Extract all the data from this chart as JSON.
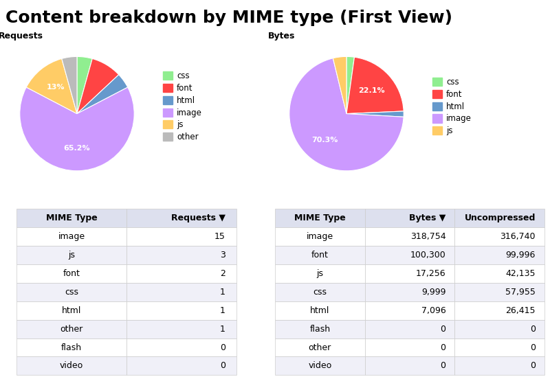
{
  "title": "Content breakdown by MIME type (First View)",
  "title_fontsize": 18,
  "title_fontweight": "bold",
  "req_label": "Requests",
  "req_pie_labels": [
    "css",
    "font",
    "html",
    "image",
    "js",
    "other"
  ],
  "req_pie_sizes": [
    4.3,
    8.7,
    4.3,
    65.2,
    13.0,
    4.3
  ],
  "req_pie_colors": [
    "#90ee90",
    "#ff4444",
    "#6699cc",
    "#cc99ff",
    "#ffcc66",
    "#bbbbbb"
  ],
  "req_pct_show": {
    "image": "65.2%",
    "js": "13%"
  },
  "bytes_label": "Bytes",
  "bytes_pie_labels": [
    "css",
    "font",
    "html",
    "image",
    "js"
  ],
  "bytes_pie_sizes": [
    2.2,
    22.1,
    1.6,
    70.3,
    3.8
  ],
  "bytes_pie_colors": [
    "#90ee90",
    "#ff4444",
    "#6699cc",
    "#cc99ff",
    "#ffcc66"
  ],
  "bytes_pct_show": {
    "image": "70.3%",
    "font": "22.1%"
  },
  "req_table_headers": [
    "MIME Type",
    "Requests ▼"
  ],
  "req_table_rows": [
    [
      "image",
      "15"
    ],
    [
      "js",
      "3"
    ],
    [
      "font",
      "2"
    ],
    [
      "css",
      "1"
    ],
    [
      "html",
      "1"
    ],
    [
      "other",
      "1"
    ],
    [
      "flash",
      "0"
    ],
    [
      "video",
      "0"
    ]
  ],
  "bytes_table_headers": [
    "MIME Type",
    "Bytes ▼",
    "Uncompressed"
  ],
  "bytes_table_rows": [
    [
      "image",
      "318,754",
      "316,740"
    ],
    [
      "font",
      "100,300",
      "99,996"
    ],
    [
      "js",
      "17,256",
      "42,135"
    ],
    [
      "css",
      "9,999",
      "57,955"
    ],
    [
      "html",
      "7,096",
      "26,415"
    ],
    [
      "flash",
      "0",
      "0"
    ],
    [
      "other",
      "0",
      "0"
    ],
    [
      "video",
      "0",
      "0"
    ]
  ],
  "bg_color": "#ffffff",
  "table_header_bg": "#dde0ee",
  "table_row_bg": "#ffffff",
  "table_alt_bg": "#f0f0f8"
}
